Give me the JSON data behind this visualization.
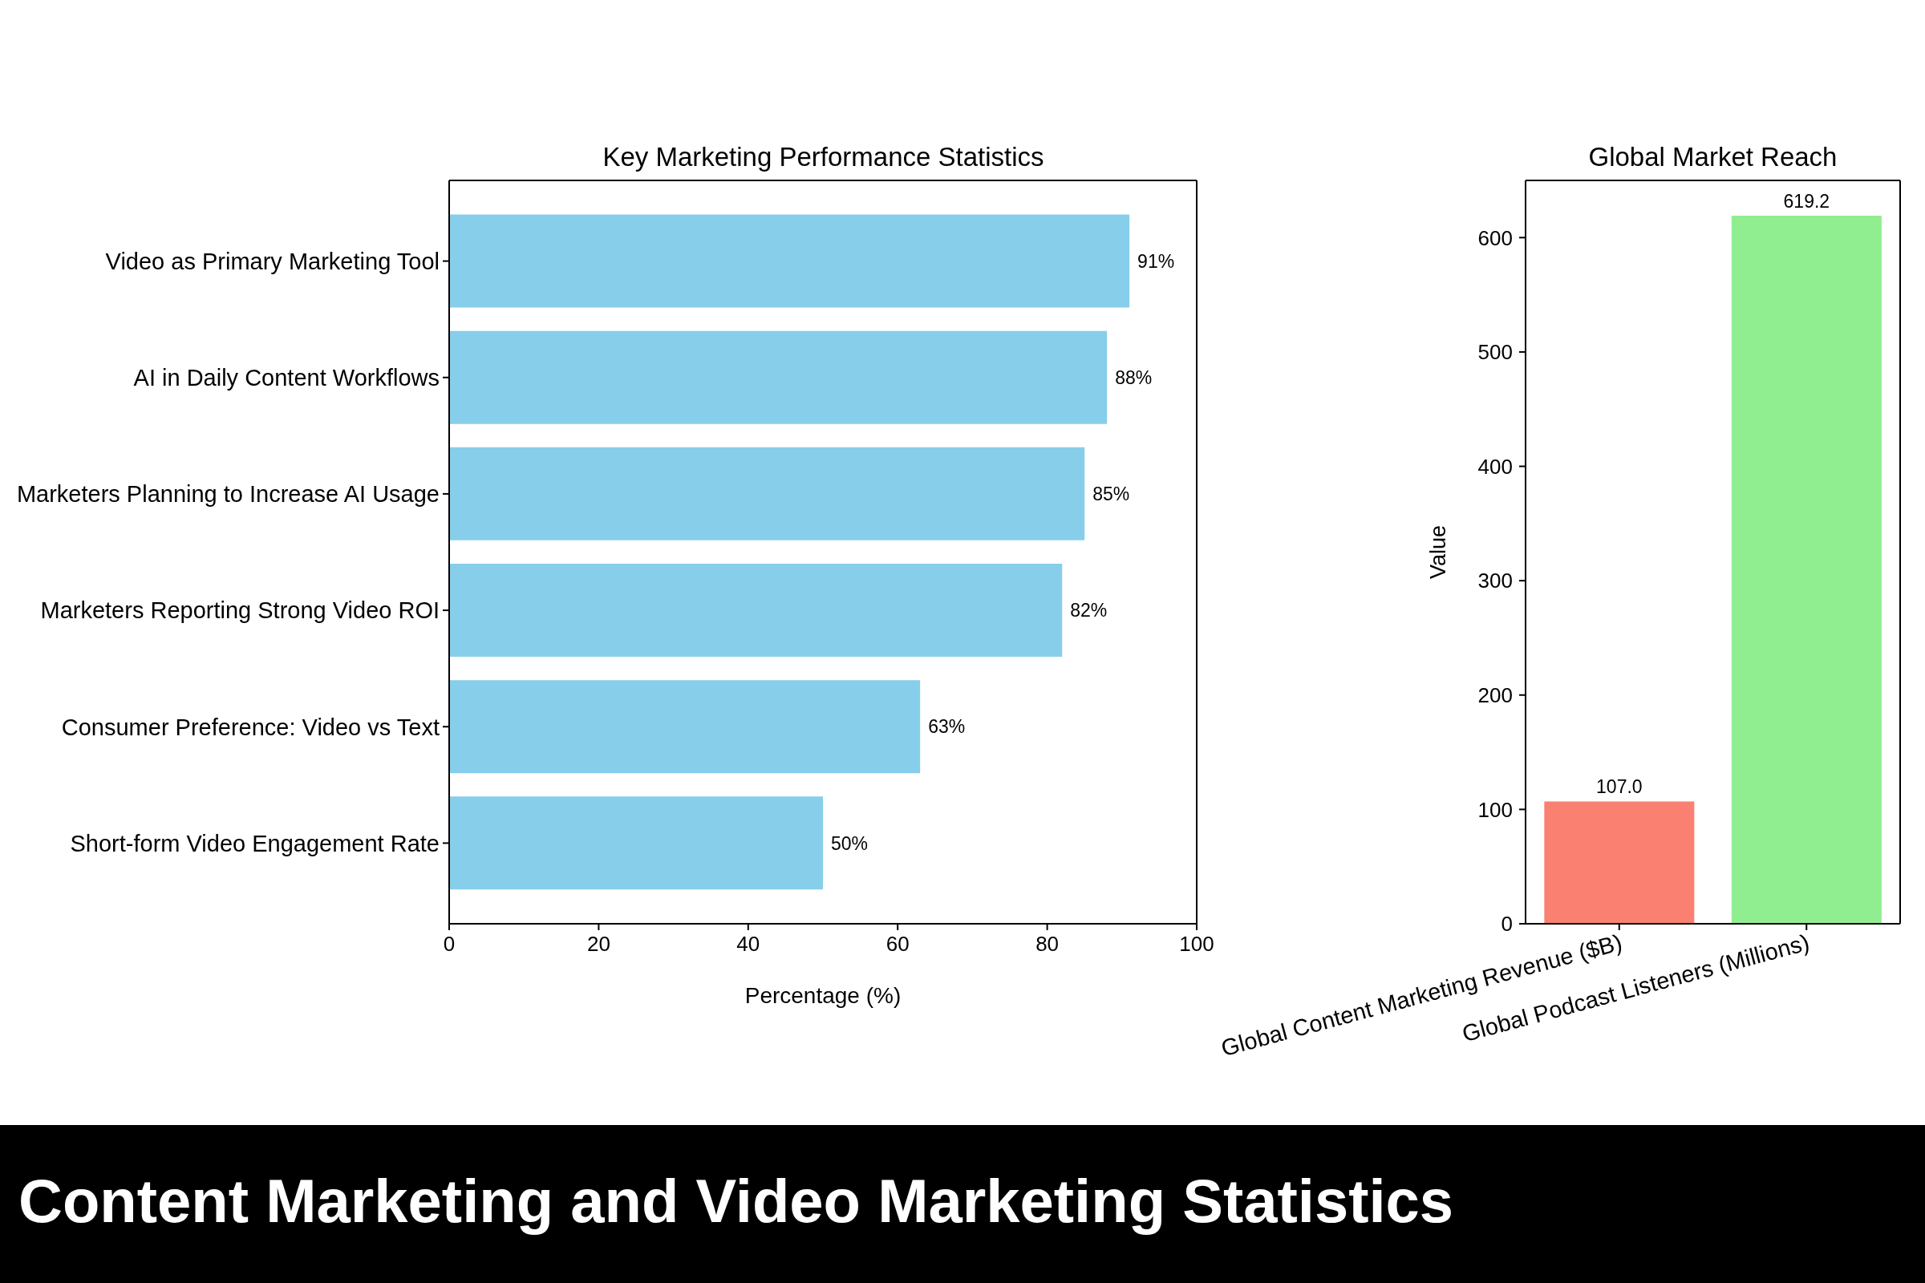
{
  "chart_data": [
    {
      "type": "bar",
      "orientation": "horizontal",
      "title": "Key Marketing Performance Statistics",
      "xlabel": "Percentage (%)",
      "categories": [
        "Video as Primary Marketing Tool",
        "AI in Daily Content Workflows",
        "Marketers Planning to Increase AI Usage",
        "Marketers Reporting Strong Video ROI",
        "Consumer Preference: Video vs Text",
        "Short-form Video Engagement Rate"
      ],
      "values": [
        91,
        88,
        85,
        82,
        63,
        50
      ],
      "value_labels": [
        "91%",
        "88%",
        "85%",
        "82%",
        "63%",
        "50%"
      ],
      "color": "#87ceeb",
      "xlim": [
        0,
        100
      ],
      "xticks": [
        0,
        20,
        40,
        60,
        80,
        100
      ]
    },
    {
      "type": "bar",
      "title": "Global Market Reach",
      "ylabel": "Value",
      "categories": [
        "Global Content Marketing Revenue ($B)",
        "Global Podcast Listeners (Millions)"
      ],
      "values": [
        107,
        619.2
      ],
      "value_labels": [
        "107.0",
        "619.2"
      ],
      "colors": [
        "#fa8072",
        "#90ee90"
      ],
      "ylim": [
        0,
        650
      ],
      "yticks": [
        0,
        100,
        200,
        300,
        400,
        500,
        600
      ]
    },
    {
      "type": "other",
      "title": "Content Marketing and Video Marketing Statistics"
    }
  ]
}
